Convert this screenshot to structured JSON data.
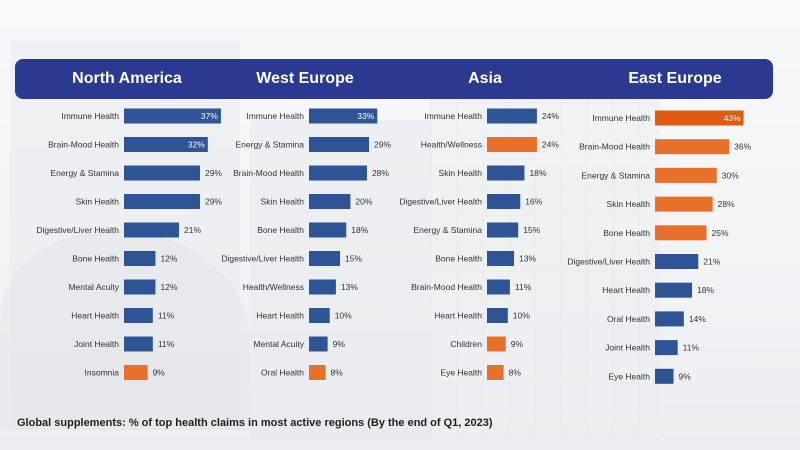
{
  "colors": {
    "header": "#2b3990",
    "blue": "#2e5496",
    "orange": "#e8702a",
    "orange_dark": "#e05a10"
  },
  "footer_note": "Global supplements: % of top health claims in most active regions (By the end of Q1, 2023)",
  "chart_data": [
    {
      "type": "bar",
      "title": "North America",
      "categories": [
        "Immune Health",
        "Brain-Mood Health",
        "Energy & Stamina",
        "Skin Health",
        "Digestive/Liver Health",
        "Bone Health",
        "Mental Acuity",
        "Heart Health",
        "Joint Health",
        "Insomnia"
      ],
      "values": [
        37,
        32,
        29,
        29,
        21,
        12,
        12,
        11,
        11,
        9
      ],
      "labels": [
        "37%",
        "32%",
        "29%",
        "29%",
        "21%",
        "12%",
        "12%",
        "11%",
        "11%",
        "9%"
      ],
      "highlight": [
        "blue",
        "blue",
        "blue",
        "blue",
        "blue",
        "blue",
        "blue",
        "blue",
        "blue",
        "orange"
      ],
      "value_inside": [
        true,
        true,
        false,
        false,
        false,
        false,
        false,
        false,
        false,
        false
      ]
    },
    {
      "type": "bar",
      "title": "West Europe",
      "categories": [
        "Immune Health",
        "Energy & Stamina",
        "Brain-Mood Health",
        "Skin Health",
        "Bone Health",
        "Digestive/Liver Health",
        "Health/Wellness",
        "Heart Health",
        "Mental Acuity",
        "Oral Health"
      ],
      "values": [
        33,
        29,
        28,
        20,
        18,
        15,
        13,
        10,
        9,
        8
      ],
      "labels": [
        "33%",
        "29%",
        "28%",
        "20%",
        "18%",
        "15%",
        "13%",
        "10%",
        "9%",
        "8%"
      ],
      "highlight": [
        "blue",
        "blue",
        "blue",
        "blue",
        "blue",
        "blue",
        "blue",
        "blue",
        "blue",
        "orange"
      ],
      "value_inside": [
        true,
        false,
        false,
        false,
        false,
        false,
        false,
        false,
        false,
        false
      ]
    },
    {
      "type": "bar",
      "title": "Asia",
      "categories": [
        "Immune Health",
        "Health/Wellness",
        "Skin Health",
        "Digestive/Liver Health",
        "Energy & Stamina",
        "Bone Health",
        "Brain-Mood Health",
        "Heart Health",
        "Children",
        "Eye Health"
      ],
      "values": [
        24,
        24,
        18,
        16,
        15,
        13,
        11,
        10,
        9,
        8
      ],
      "labels": [
        "24%",
        "24%",
        "18%",
        "16%",
        "15%",
        "13%",
        "11%",
        "10%",
        "9%",
        "8%"
      ],
      "highlight": [
        "blue",
        "orange",
        "blue",
        "blue",
        "blue",
        "blue",
        "blue",
        "blue",
        "orange",
        "orange"
      ],
      "value_inside": [
        false,
        false,
        false,
        false,
        false,
        false,
        false,
        false,
        false,
        false
      ]
    },
    {
      "type": "bar",
      "title": "East Europe",
      "categories": [
        "Immune Health",
        "Brain-Mood Health",
        "Energy & Stamina",
        "Skin Health",
        "Bone Health",
        "Digestive/Liver Health",
        "Heart Health",
        "Oral Health",
        "Joint Health",
        "Eye Health"
      ],
      "values": [
        43,
        36,
        30,
        28,
        25,
        21,
        18,
        14,
        11,
        9
      ],
      "labels": [
        "43%",
        "36%",
        "30%",
        "28%",
        "25%",
        "21%",
        "18%",
        "14%",
        "11%",
        "9%"
      ],
      "highlight": [
        "orange_dark",
        "orange",
        "orange",
        "orange",
        "orange",
        "blue",
        "blue",
        "blue",
        "blue",
        "blue"
      ],
      "value_inside": [
        true,
        false,
        false,
        false,
        false,
        false,
        false,
        false,
        false,
        false
      ]
    }
  ]
}
